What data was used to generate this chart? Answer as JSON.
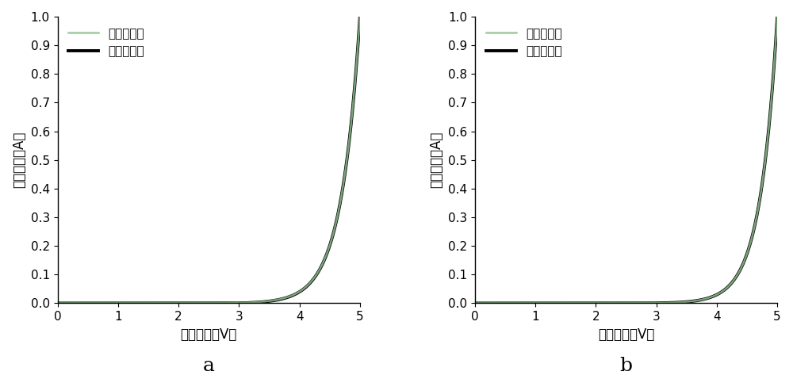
{
  "xlabel": "正向电压（V）",
  "ylabel": "正向电流（A）",
  "legend_before": "老化试验前",
  "legend_after": "老化试验后",
  "label_a": "a",
  "label_b": "b",
  "xlim": [
    0,
    5
  ],
  "ylim": [
    0,
    1.0
  ],
  "xticks": [
    0,
    1,
    2,
    3,
    4,
    5
  ],
  "yticks": [
    0.0,
    0.1,
    0.2,
    0.3,
    0.4,
    0.5,
    0.6,
    0.7,
    0.8,
    0.9,
    1.0
  ],
  "plot_a": {
    "before_vth": 2.65,
    "before_scale": 0.55,
    "after_vth": 2.9,
    "after_scale": 0.52
  },
  "plot_b": {
    "before_vth": 2.72,
    "before_scale": 0.54,
    "after_vth": 2.8,
    "after_scale": 0.53
  },
  "color_before": "#90c090",
  "color_after": "#000000",
  "lw_before": 1.8,
  "lw_after": 2.8,
  "background_color": "#ffffff",
  "font_size_label": 12,
  "font_size_tick": 11,
  "font_size_legend": 11,
  "font_size_sublabel": 18
}
